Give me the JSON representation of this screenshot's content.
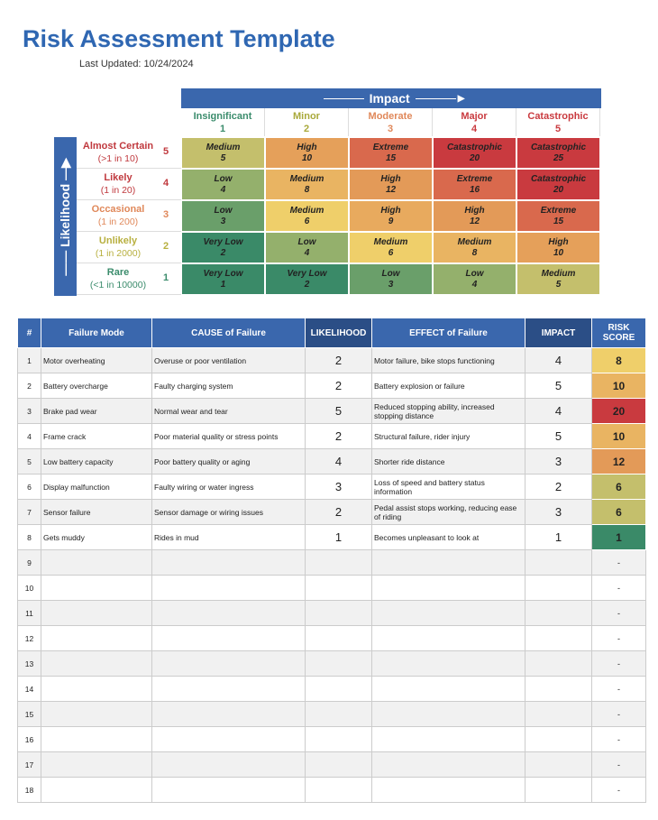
{
  "title": "Risk Assessment Template",
  "last_updated": "Last Updated: 10/24/2024",
  "matrix": {
    "impact_label": "Impact",
    "likelihood_label": "Likelihood",
    "impact": [
      {
        "name": "Insignificant",
        "num": "1",
        "color": "#3b8c6c"
      },
      {
        "name": "Minor",
        "num": "2",
        "color": "#a9a93a"
      },
      {
        "name": "Moderate",
        "num": "3",
        "color": "#e0885a"
      },
      {
        "name": "Major",
        "num": "4",
        "color": "#c93a3f"
      },
      {
        "name": "Catastrophic",
        "num": "5",
        "color": "#c93a3f"
      }
    ],
    "likelihood": [
      {
        "name": "Almost Certain",
        "sub": "(>1 in 10)",
        "num": "5",
        "color": "#c0393e"
      },
      {
        "name": "Likely",
        "sub": "(1 in 20)",
        "num": "4",
        "color": "#c0393e"
      },
      {
        "name": "Occasional",
        "sub": "(1 in 200)",
        "num": "3",
        "color": "#e0885a"
      },
      {
        "name": "Unlikely",
        "sub": "(1 in 2000)",
        "num": "2",
        "color": "#b8b040"
      },
      {
        "name": "Rare",
        "sub": "(<1 in 10000)",
        "num": "1",
        "color": "#3b8c6c"
      }
    ],
    "cells": [
      [
        {
          "l": "Medium",
          "v": "5"
        },
        {
          "l": "High",
          "v": "10"
        },
        {
          "l": "Extreme",
          "v": "15"
        },
        {
          "l": "Catastrophic",
          "v": "20"
        },
        {
          "l": "Catastrophic",
          "v": "25"
        }
      ],
      [
        {
          "l": "Low",
          "v": "4"
        },
        {
          "l": "Medium",
          "v": "8"
        },
        {
          "l": "High",
          "v": "12"
        },
        {
          "l": "Extreme",
          "v": "16"
        },
        {
          "l": "Catastrophic",
          "v": "20"
        }
      ],
      [
        {
          "l": "Low",
          "v": "3"
        },
        {
          "l": "Medium",
          "v": "6"
        },
        {
          "l": "High",
          "v": "9"
        },
        {
          "l": "High",
          "v": "12"
        },
        {
          "l": "Extreme",
          "v": "15"
        }
      ],
      [
        {
          "l": "Very Low",
          "v": "2"
        },
        {
          "l": "Low",
          "v": "4"
        },
        {
          "l": "Medium",
          "v": "6"
        },
        {
          "l": "Medium",
          "v": "8"
        },
        {
          "l": "High",
          "v": "10"
        }
      ],
      [
        {
          "l": "Very Low",
          "v": "1"
        },
        {
          "l": "Very Low",
          "v": "2"
        },
        {
          "l": "Low",
          "v": "3"
        },
        {
          "l": "Low",
          "v": "4"
        },
        {
          "l": "Medium",
          "v": "5"
        }
      ]
    ]
  },
  "score_colors": {
    "1": "#3a8a68",
    "2": "#3a8a68",
    "3": "#6a9f6a",
    "4": "#94b06c",
    "5": "#c4bf6c",
    "6": "#c4bf6c",
    "8": "#efcf6a",
    "9": "#e8aa5e",
    "10": "#e9b462",
    "12": "#e39a58",
    "15": "#d9694d",
    "16": "#d9694d",
    "20": "#c93a3f",
    "25": "#c93a3f"
  },
  "table": {
    "headers": [
      "#",
      "Failure Mode",
      "CAUSE of Failure",
      "LIKELIHOOD",
      "EFFECT of Failure",
      "IMPACT",
      "RISK SCORE"
    ],
    "rows": [
      [
        "1",
        "Motor overheating",
        "Overuse or poor ventilation",
        "2",
        "Motor failure, bike stops functioning",
        "4",
        "8"
      ],
      [
        "2",
        "Battery overcharge",
        "Faulty charging system",
        "2",
        "Battery explosion or failure",
        "5",
        "10"
      ],
      [
        "3",
        "Brake pad wear",
        "Normal wear and tear",
        "5",
        "Reduced stopping ability, increased stopping distance",
        "4",
        "20"
      ],
      [
        "4",
        "Frame crack",
        "Poor material quality or stress points",
        "2",
        "Structural failure, rider injury",
        "5",
        "10"
      ],
      [
        "5",
        "Low battery capacity",
        "Poor battery quality or aging",
        "4",
        "Shorter ride distance",
        "3",
        "12"
      ],
      [
        "6",
        "Display malfunction",
        "Faulty wiring or water ingress",
        "3",
        "Loss of speed and battery status information",
        "2",
        "6"
      ],
      [
        "7",
        "Sensor failure",
        "Sensor damage or wiring issues",
        "2",
        "Pedal assist stops working, reducing ease of riding",
        "3",
        "6"
      ],
      [
        "8",
        "Gets muddy",
        "Rides in mud",
        "1",
        "Becomes unpleasant to look at",
        "1",
        "1"
      ],
      [
        "9",
        "",
        "",
        "",
        "",
        "",
        "-"
      ],
      [
        "10",
        "",
        "",
        "",
        "",
        "",
        "-"
      ],
      [
        "11",
        "",
        "",
        "",
        "",
        "",
        "-"
      ],
      [
        "12",
        "",
        "",
        "",
        "",
        "",
        "-"
      ],
      [
        "13",
        "",
        "",
        "",
        "",
        "",
        "-"
      ],
      [
        "14",
        "",
        "",
        "",
        "",
        "",
        "-"
      ],
      [
        "15",
        "",
        "",
        "",
        "",
        "",
        "-"
      ],
      [
        "16",
        "",
        "",
        "",
        "",
        "",
        "-"
      ],
      [
        "17",
        "",
        "",
        "",
        "",
        "",
        "-"
      ],
      [
        "18",
        "",
        "",
        "",
        "",
        "",
        "-"
      ]
    ]
  }
}
